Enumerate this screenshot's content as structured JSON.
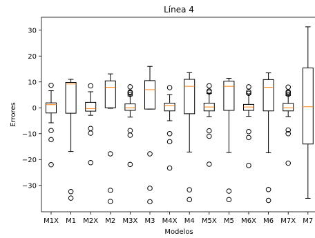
{
  "chart_data": {
    "type": "boxplot",
    "title": "Línea 4",
    "xlabel": "Modelos",
    "ylabel": "Errores",
    "ylim": [
      -40.2,
      35.0
    ],
    "yticks": [
      -30,
      -20,
      -10,
      0,
      10,
      20,
      30
    ],
    "grid": false,
    "legend": "none",
    "colors": {
      "box": "#000000",
      "median": "#ff7f0e",
      "flier": "#000000"
    },
    "categories": [
      "M1X",
      "M1",
      "M2X",
      "M2",
      "M3X",
      "M3",
      "M4X",
      "M4",
      "M5X",
      "M5",
      "M6X",
      "M6",
      "M7X",
      "M7"
    ],
    "boxes": [
      {
        "label": "M1X",
        "whisker_low": -5.8,
        "q1": -2.0,
        "median": 1.2,
        "q3": 1.9,
        "whisker_high": 6.6,
        "fliers": [
          8.7,
          -8.8,
          -12.3,
          -22.0
        ]
      },
      {
        "label": "M1",
        "whisker_low": -16.9,
        "q1": -2.1,
        "median": 9.2,
        "q3": 9.8,
        "whisker_high": 11.0,
        "fliers": [
          -32.4,
          -34.9
        ]
      },
      {
        "label": "M2X",
        "whisker_low": -2.9,
        "q1": -1.3,
        "median": -0.3,
        "q3": 2.1,
        "whisker_high": 6.2,
        "fliers": [
          8.5,
          -8.0,
          -9.8,
          -21.2
        ]
      },
      {
        "label": "M2",
        "whisker_low": -0.2,
        "q1": 0.0,
        "median": 7.9,
        "q3": 10.4,
        "whisker_high": 13.1,
        "fliers": [
          -17.8,
          -31.9,
          -36.2
        ]
      },
      {
        "label": "M3X",
        "whisker_low": -3.6,
        "q1": -1.0,
        "median": 0.0,
        "q3": 1.5,
        "whisker_high": 4.6,
        "fliers": [
          5.2,
          5.8,
          6.1,
          8.1,
          -8.8,
          -10.6,
          -21.9
        ]
      },
      {
        "label": "M3",
        "whisker_low": -0.5,
        "q1": -0.5,
        "median": 7.0,
        "q3": 10.5,
        "whisker_high": 16.0,
        "fliers": [
          -17.8,
          -31.1,
          -36.3
        ]
      },
      {
        "label": "M4X",
        "whisker_low": -5.0,
        "q1": -1.2,
        "median": 0.9,
        "q3": 1.8,
        "whisker_high": 5.1,
        "fliers": [
          7.8,
          -10.0,
          -13.1,
          -23.3
        ]
      },
      {
        "label": "M4",
        "whisker_low": -17.1,
        "q1": -2.3,
        "median": 8.3,
        "q3": 11.0,
        "whisker_high": 13.6,
        "fliers": [
          -31.7,
          -35.5
        ]
      },
      {
        "label": "M5X",
        "whisker_low": -3.4,
        "q1": -1.2,
        "median": 0.3,
        "q3": 1.8,
        "whisker_high": 5.5,
        "fliers": [
          6.1,
          6.5,
          8.5,
          -8.9,
          -11.0,
          -21.8
        ]
      },
      {
        "label": "M5",
        "whisker_low": -17.3,
        "q1": -1.0,
        "median": 8.3,
        "q3": 10.3,
        "whisker_high": 11.4,
        "fliers": [
          -32.2,
          -35.5
        ]
      },
      {
        "label": "M6X",
        "whisker_low": -3.3,
        "q1": -1.0,
        "median": 0.3,
        "q3": 1.3,
        "whisker_high": 5.3,
        "fliers": [
          5.6,
          6.2,
          8.1,
          -9.2,
          -11.5,
          -22.3
        ]
      },
      {
        "label": "M6",
        "whisker_low": -17.4,
        "q1": -1.2,
        "median": 7.9,
        "q3": 10.9,
        "whisker_high": 13.5,
        "fliers": [
          -31.6,
          -35.8
        ]
      },
      {
        "label": "M7X",
        "whisker_low": -3.4,
        "q1": -1.2,
        "median": 0.0,
        "q3": 1.7,
        "whisker_high": 4.8,
        "fliers": [
          5.2,
          5.8,
          6.2,
          8.0,
          -8.6,
          -10.0,
          -21.4
        ]
      },
      {
        "label": "M7",
        "whisker_low": -35.0,
        "q1": -14.0,
        "median": 0.4,
        "q3": 15.4,
        "whisker_high": 31.3,
        "fliers": []
      }
    ]
  }
}
